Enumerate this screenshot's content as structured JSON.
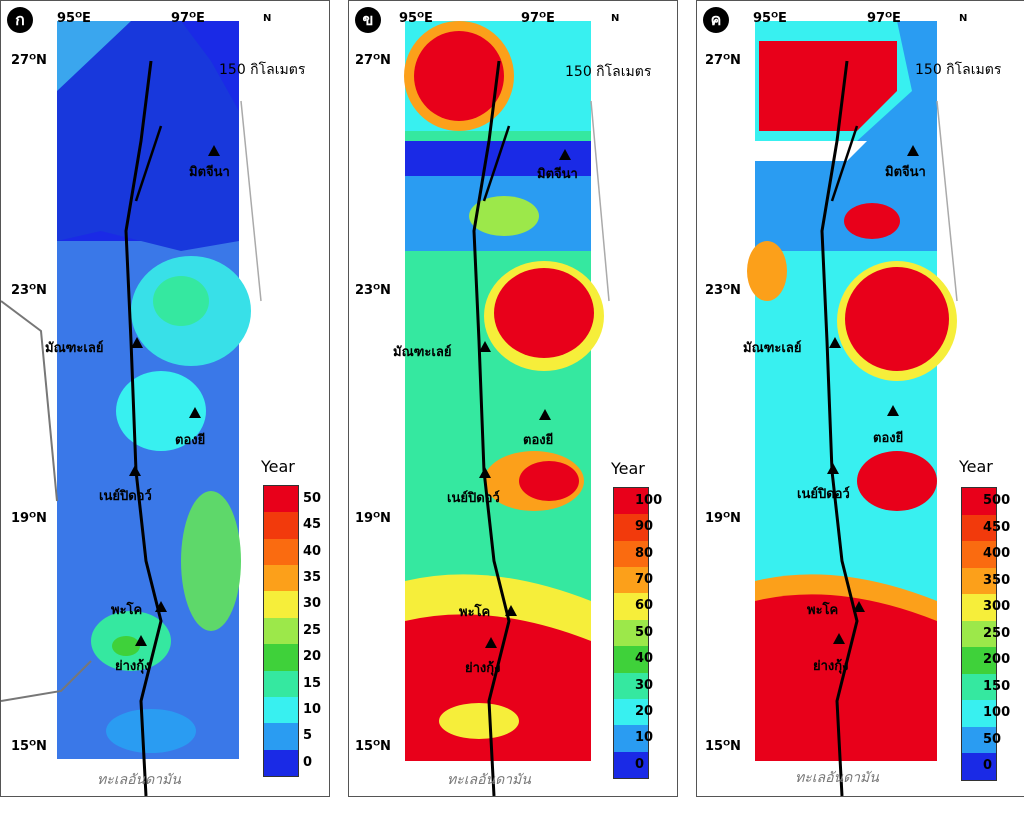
{
  "panels": [
    {
      "badge": "ก",
      "colorbar_ticks": [
        "50",
        "45",
        "40",
        "35",
        "30",
        "25",
        "20",
        "15",
        "10",
        "5",
        "0"
      ]
    },
    {
      "badge": "ข",
      "colorbar_ticks": [
        "100",
        "90",
        "80",
        "70",
        "60",
        "50",
        "40",
        "30",
        "20",
        "10",
        "0"
      ]
    },
    {
      "badge": "ค",
      "colorbar_ticks": [
        "500",
        "450",
        "400",
        "350",
        "300",
        "250",
        "200",
        "150",
        "100",
        "50",
        "0"
      ]
    }
  ],
  "common": {
    "lon_labels": [
      "95ᴼE",
      "97ᴼE"
    ],
    "lat_labels": [
      "27ᴼN",
      "23ᴼN",
      "19ᴼN",
      "15ᴼN"
    ],
    "scale_label": "150 กิโลเมตร",
    "north": "N",
    "legend_title": "Year",
    "sea_label": "ทะเลอันดามัน",
    "cities": [
      "มิตจีนา",
      "มัณฑะเลย์",
      "ตองยี",
      "เนย์ปิดอว์",
      "พะโค",
      "ย่างกุ้ง"
    ]
  },
  "colorbar_colors": [
    "#e8001a",
    "#f23a0c",
    "#fa6b10",
    "#fca01a",
    "#f6ee3a",
    "#9ce84a",
    "#3fd13a",
    "#35e8a0",
    "#38f0f0",
    "#2a9cf2",
    "#1a2ae6"
  ]
}
